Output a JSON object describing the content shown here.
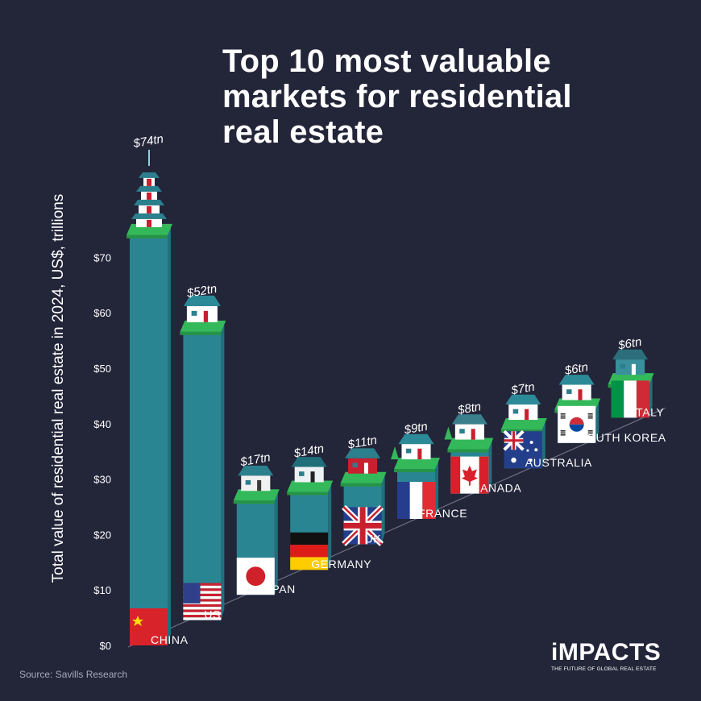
{
  "title_lines": [
    "Top 10 most valuable",
    "markets for residential",
    "real estate"
  ],
  "source": "Source: Savills Research",
  "brand": {
    "name": "iMPACTS",
    "tagline": "THE FUTURE OF GLOBAL REAL ESTATE"
  },
  "colors": {
    "background": "#232539",
    "bar": "#2a8593",
    "bar_side": "#20707c",
    "base": "#34b95a",
    "text": "#ffffff"
  },
  "chart_data": {
    "type": "bar",
    "title": "Top 10 most valuable markets for residential real estate",
    "ylabel": "Total value of residential real estate in 2024, US$, trillions",
    "ylim": [
      0,
      70
    ],
    "yticks": [
      0,
      10,
      20,
      30,
      40,
      50,
      60,
      70
    ],
    "ytick_labels": [
      "$0",
      "$10",
      "$20",
      "$30",
      "$40",
      "$50",
      "$60",
      "$70"
    ],
    "categories": [
      "CHINA",
      "US",
      "JAPAN",
      "GERMANY",
      "UK",
      "FRANCE",
      "CANADA",
      "AUSTRALIA",
      "SOUTH KOREA",
      "ITALY"
    ],
    "values": [
      74,
      52,
      17,
      14,
      11,
      9,
      8,
      7,
      6,
      6
    ],
    "value_labels": [
      "$74tn",
      "$52tn",
      "$17tn",
      "$14tn",
      "$11tn",
      "$9tn",
      "$8tn",
      "$7tn",
      "$6tn",
      "$6tn"
    ],
    "flags": [
      "china-flag",
      "us-flag",
      "japan-flag",
      "germany-flag",
      "uk-flag",
      "france-flag",
      "canada-flag",
      "australia-flag",
      "south-korea-flag",
      "italy-flag"
    ],
    "houses": [
      "pagoda-icon",
      "house-icon",
      "japanese-house-icon",
      "tudor-house-icon",
      "brick-house-icon",
      "house-icon",
      "barn-house-icon",
      "bungalow-icon",
      "house-icon",
      "villa-icon"
    ]
  }
}
